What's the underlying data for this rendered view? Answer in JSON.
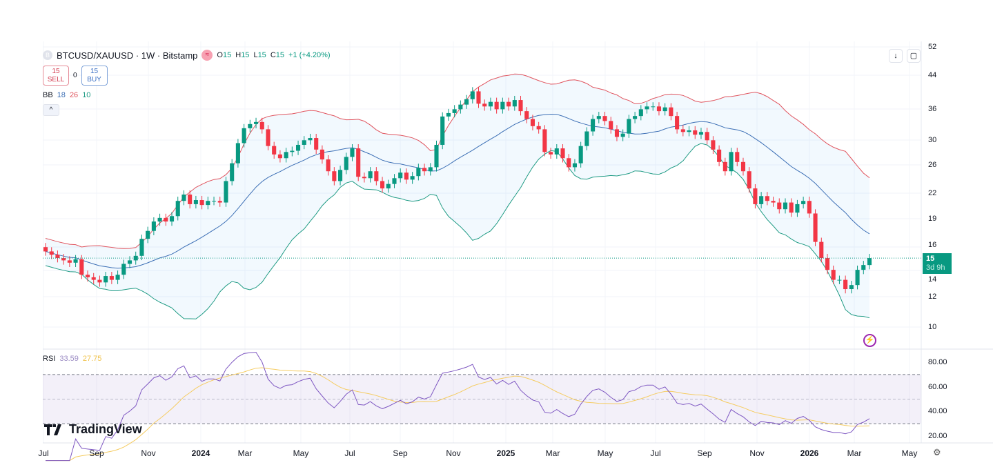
{
  "header": {
    "symbol_icon": "B",
    "title": "BTCUSD/XAUUSD · 1W · Bitstamp",
    "market_icon": "≈",
    "ohlc": {
      "o_label": "O",
      "o": "15",
      "h_label": "H",
      "h": "15",
      "l_label": "L",
      "l": "15",
      "c_label": "C",
      "c": "15",
      "change": "+1 (+4.20%)"
    }
  },
  "trade": {
    "sell_price": "15",
    "sell_label": "SELL",
    "spread": "0",
    "buy_price": "15",
    "buy_label": "BUY"
  },
  "bb_legend": {
    "name": "BB",
    "basis": "18",
    "upper": "26",
    "lower": "10"
  },
  "collapse_icon": "^",
  "tools": {
    "download_icon": "↓",
    "fullscreen_icon": "▢"
  },
  "price_badge": {
    "price": "15",
    "countdown": "3d 9h"
  },
  "rsi_legend": {
    "name": "RSI",
    "value": "33.59",
    "ma": "27.75"
  },
  "branding": {
    "logo": "TradingView"
  },
  "colors": {
    "up": "#089981",
    "down": "#f23645",
    "bb_upper": "#e0545e",
    "bb_basis": "#3c6fb5",
    "bb_lower": "#1f9b84",
    "rsi": "#7e57c2",
    "rsi_ma": "#f5cc61"
  },
  "chart_data": {
    "type": "candlestick",
    "title": "BTCUSD/XAUUSD · 1W · Bitstamp",
    "scale": "log",
    "ylim": [
      9.3,
      53
    ],
    "price_ticks": [
      "52",
      "44",
      "36",
      "30",
      "26",
      "22",
      "19",
      "16",
      "14",
      "12",
      "10"
    ],
    "time_ticks": [
      "Jul",
      "Sep",
      "Nov",
      "2024",
      "Mar",
      "May",
      "Jul",
      "Sep",
      "Nov",
      "2025",
      "Mar",
      "May",
      "Jul",
      "Sep",
      "Nov",
      "2026",
      "Mar",
      "May"
    ],
    "first_open": 16.0,
    "closes": [
      15.6,
      15.3,
      15.0,
      14.8,
      14.6,
      14.9,
      13.6,
      13.4,
      13.2,
      13.0,
      13.5,
      13.2,
      13.6,
      14.5,
      14.8,
      15.2,
      16.8,
      17.6,
      18.6,
      19.0,
      18.6,
      19.2,
      21.0,
      21.8,
      20.6,
      21.1,
      20.5,
      21.0,
      21.0,
      20.8,
      23.6,
      26.2,
      29.5,
      32.2,
      33.0,
      33.4,
      32.0,
      29.0,
      27.6,
      27.0,
      28.0,
      28.2,
      29.2,
      30.0,
      30.4,
      28.4,
      26.8,
      25.0,
      23.6,
      25.2,
      27.2,
      28.6,
      24.2,
      24.0,
      25.0,
      23.6,
      22.6,
      23.2,
      24.0,
      24.8,
      23.8,
      24.3,
      25.5,
      25.0,
      25.6,
      29.2,
      34.5,
      35.2,
      36.0,
      37.0,
      38.2,
      40.0,
      37.2,
      36.6,
      37.6,
      36.0,
      37.6,
      36.6,
      38.0,
      35.6,
      34.0,
      32.6,
      32.0,
      28.0,
      27.6,
      28.6,
      27.0,
      25.6,
      26.2,
      29.0,
      31.6,
      34.0,
      34.6,
      33.6,
      32.0,
      30.6,
      31.2,
      34.0,
      34.6,
      36.0,
      36.6,
      36.6,
      35.6,
      36.4,
      34.6,
      32.0,
      31.5,
      31.8,
      31.0,
      31.5,
      30.0,
      28.4,
      26.4,
      25.0,
      28.0,
      26.4,
      25.0,
      22.6,
      20.6,
      21.6,
      21.0,
      20.8,
      20.0,
      20.8,
      19.6,
      20.6,
      21.0,
      19.5,
      16.5,
      15.0,
      14.0,
      13.2,
      13.2,
      12.5,
      12.8,
      14.0,
      14.4,
      15.0
    ],
    "bollinger": {
      "period": 20,
      "stddev": 2
    },
    "rsi": {
      "period": 14,
      "ma_period": 14,
      "ylim": [
        15,
        85
      ],
      "ticks": [
        "80.00",
        "60.00",
        "40.00",
        "20.00"
      ],
      "upper_band": 70,
      "middle_band": 50,
      "lower_band": 30
    },
    "last_price": 15
  }
}
